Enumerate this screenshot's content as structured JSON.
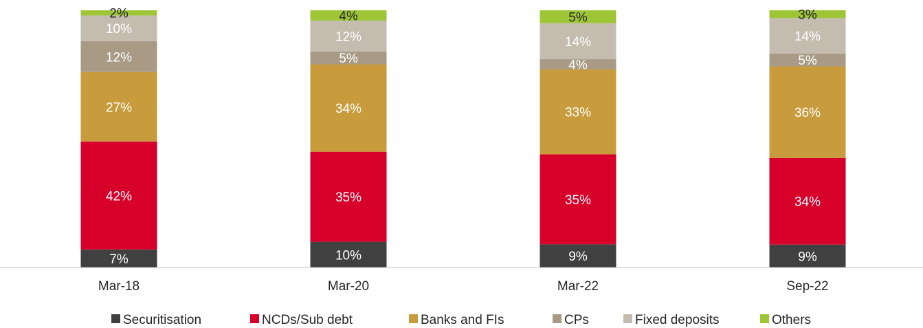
{
  "chart_data": {
    "type": "bar",
    "stacked": true,
    "categories": [
      "Mar-18",
      "Mar-20",
      "Mar-22",
      "Sep-22"
    ],
    "ylim": [
      0,
      100
    ],
    "grid": false,
    "legend_position": "bottom",
    "series": [
      {
        "name": "Securitisation",
        "color": "#404040",
        "values": [
          7,
          10,
          9,
          9
        ],
        "labels": [
          "7%",
          "10%",
          "9%",
          "9%"
        ],
        "label_color": "#ffffff"
      },
      {
        "name": "NCDs/Sub debt",
        "color": "#d6002a",
        "values": [
          42,
          35,
          35,
          34
        ],
        "labels": [
          "42%",
          "35%",
          "35%",
          "34%"
        ],
        "label_color": "#ffffff"
      },
      {
        "name": "Banks and FIs",
        "color": "#c89b3c",
        "values": [
          27,
          34,
          33,
          36
        ],
        "labels": [
          "27%",
          "34%",
          "33%",
          "36%"
        ],
        "label_color": "#ffffff"
      },
      {
        "name": "CPs",
        "color": "#a89a85",
        "values": [
          12,
          5,
          4,
          5
        ],
        "labels": [
          "12%",
          "5%",
          "4%",
          "5%"
        ],
        "label_color": "#ffffff"
      },
      {
        "name": "Fixed deposits",
        "color": "#c5bcb0",
        "values": [
          10,
          12,
          14,
          14
        ],
        "labels": [
          "10%",
          "12%",
          "14%",
          "14%"
        ],
        "label_color": "#ffffff"
      },
      {
        "name": "Others",
        "color": "#9dc536",
        "values": [
          2,
          4,
          5,
          3
        ],
        "labels": [
          "2%",
          "4%",
          "5%",
          "3%"
        ],
        "label_color": "#262626"
      }
    ]
  }
}
